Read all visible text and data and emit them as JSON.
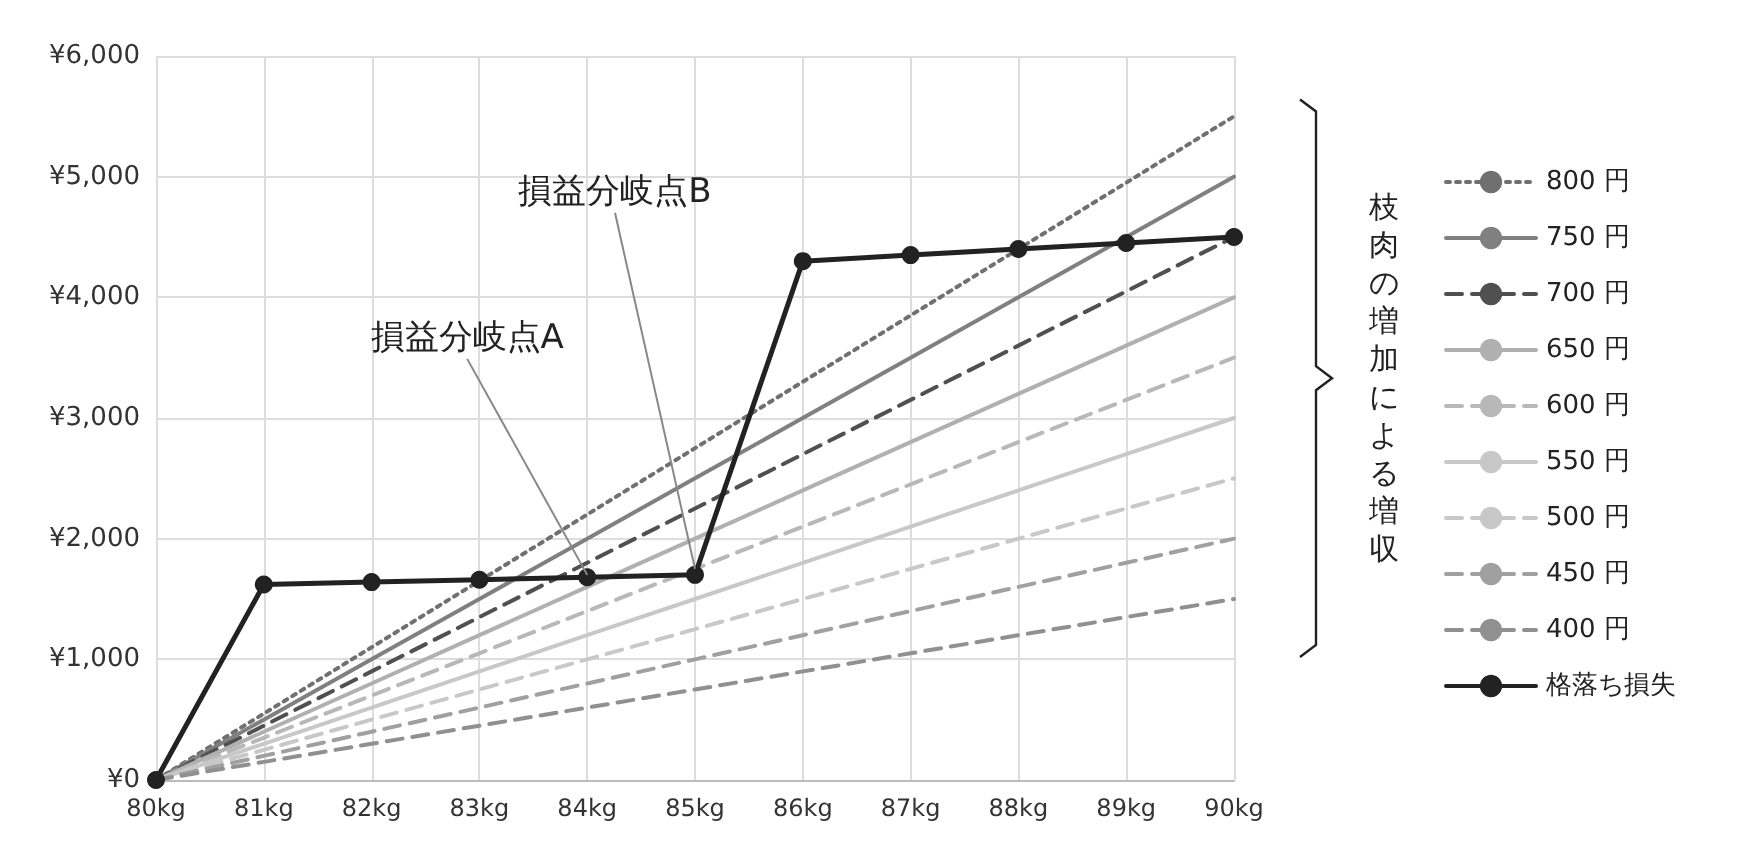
{
  "chart_data": {
    "type": "line",
    "categories": [
      "80kg",
      "81kg",
      "82kg",
      "83kg",
      "84kg",
      "85kg",
      "86kg",
      "87kg",
      "88kg",
      "89kg",
      "90kg"
    ],
    "series": [
      {
        "name": "800 円",
        "color": "#707070",
        "line_style": "dotted",
        "marker": "none",
        "values": [
          0,
          550,
          1100,
          1650,
          2200,
          2750,
          3300,
          3850,
          4400,
          4950,
          5500
        ]
      },
      {
        "name": "750 円",
        "color": "#808080",
        "line_style": "solid",
        "marker": "none",
        "values": [
          0,
          500,
          1000,
          1500,
          2000,
          2500,
          3000,
          3500,
          4000,
          4500,
          5000
        ]
      },
      {
        "name": "700 円",
        "color": "#505050",
        "line_style": "dashed",
        "marker": "none",
        "values": [
          0,
          450,
          900,
          1350,
          1800,
          2250,
          2700,
          3150,
          3600,
          4050,
          4500
        ]
      },
      {
        "name": "650 円",
        "color": "#b0b0b0",
        "line_style": "solid",
        "marker": "none",
        "values": [
          0,
          400,
          800,
          1200,
          1600,
          2000,
          2400,
          2800,
          3200,
          3600,
          4000
        ]
      },
      {
        "name": "600 円",
        "color": "#b8b8b8",
        "line_style": "dashed",
        "marker": "none",
        "values": [
          0,
          350,
          700,
          1050,
          1400,
          1750,
          2100,
          2450,
          2800,
          3150,
          3500
        ]
      },
      {
        "name": "550 円",
        "color": "#c8c8c8",
        "line_style": "solid",
        "marker": "none",
        "values": [
          0,
          300,
          600,
          900,
          1200,
          1500,
          1800,
          2100,
          2400,
          2700,
          3000
        ]
      },
      {
        "name": "500 円",
        "color": "#c8c8c8",
        "line_style": "dashed",
        "marker": "none",
        "values": [
          0,
          250,
          500,
          750,
          1000,
          1250,
          1500,
          1750,
          2000,
          2250,
          2500
        ]
      },
      {
        "name": "450 円",
        "color": "#a0a0a0",
        "line_style": "dashed",
        "marker": "none",
        "values": [
          0,
          200,
          400,
          600,
          800,
          1000,
          1200,
          1400,
          1600,
          1800,
          2000
        ]
      },
      {
        "name": "400 円",
        "color": "#909090",
        "line_style": "dashed",
        "marker": "none",
        "values": [
          0,
          150,
          300,
          450,
          600,
          750,
          900,
          1050,
          1200,
          1350,
          1500
        ]
      },
      {
        "name": "格落ち損失",
        "color": "#222222",
        "line_style": "solid",
        "marker": "circle",
        "values": [
          0,
          1620,
          1640,
          1660,
          1680,
          1700,
          4300,
          4350,
          4400,
          4450,
          4500
        ]
      }
    ],
    "ylim": [
      0,
      6000
    ],
    "yticks": [
      {
        "value": 0,
        "label": "¥0"
      },
      {
        "value": 1000,
        "label": "¥1,000"
      },
      {
        "value": 2000,
        "label": "¥2,000"
      },
      {
        "value": 3000,
        "label": "¥3,000"
      },
      {
        "value": 4000,
        "label": "¥4,000"
      },
      {
        "value": 5000,
        "label": "¥5,000"
      },
      {
        "value": 6000,
        "label": "¥6,000"
      }
    ],
    "grid": true,
    "legend": "right",
    "annotations": [
      {
        "text": "損益分岐点A",
        "x": "84kg",
        "y": 1700
      },
      {
        "text": "損益分岐点B",
        "x": "85kg",
        "y": 1750
      },
      "枝肉の増加による増収"
    ]
  }
}
